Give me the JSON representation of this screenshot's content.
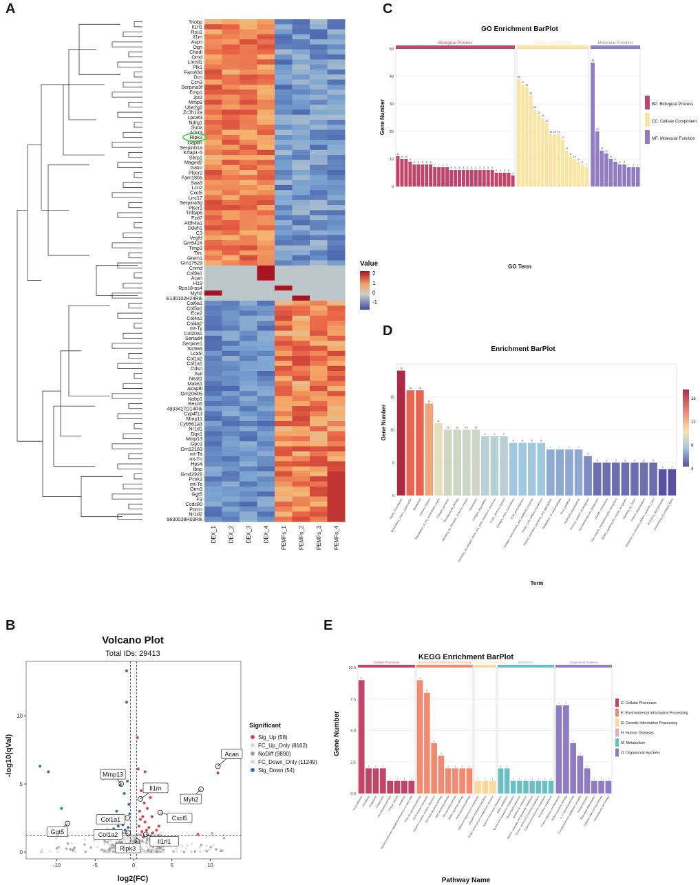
{
  "panel_labels": {
    "a": "A",
    "b": "B",
    "c": "C",
    "d": "D",
    "e": "E"
  },
  "colors": {
    "up": "#d6404e",
    "down": "#2f6fb7",
    "nodiff": "#9a9a9a",
    "fc": "#d9d9d9",
    "bp": "#c1456b",
    "cc": "#fbe3a0",
    "mf": "#8f7cc3"
  },
  "chart_data": [
    {
      "id": "heatmap",
      "type": "heatmap",
      "title": "",
      "legend_title": "Value",
      "legend_ticks": [
        "2",
        "1",
        "0",
        "-1"
      ],
      "columns": [
        "DEX_1",
        "DEX_2",
        "DEX_3",
        "DEX_4",
        "PEMFs_1",
        "PEMFs_2",
        "PEMFs_3",
        "PEMFs_4"
      ],
      "rows": [
        "Triobp",
        "Il1rl1",
        "Rsu1",
        "Il1rn",
        "Aspn",
        "Ogn",
        "Chodl",
        "Omd",
        "Lmcd1",
        "Plk1",
        "Fam83d",
        "Dcn",
        "Ccn3",
        "Serpina3f",
        "Emp1",
        "Jpt2",
        "Mmp9",
        "Ube2g2",
        "Zc3h12a",
        "Lpcat3",
        "Ndrg1",
        "Suox",
        "Ackr3",
        "Ripk3",
        "Gapdh",
        "Serpinb1a",
        "Krtap1-5",
        "Serp1",
        "Maged2",
        "Gatm",
        "Plscr2",
        "Fam180a",
        "Saa3",
        "Lcn2",
        "Cxcl5",
        "Lrrc17",
        "Serpina3g",
        "Plscr1",
        "Tnfaip6",
        "Fzd7",
        "Aldh4a1",
        "Ddah1",
        "C3",
        "Vegfd",
        "Gm5424",
        "Timp3",
        "Tfrc",
        "Grem1",
        "Gm17529",
        "Cnmd",
        "Col9a1",
        "Acan",
        "H19",
        "Rps18-ps4",
        "Myh2",
        "E130102H24Rik",
        "Col6a1",
        "Col5a1",
        "Ece2",
        "Col4a1",
        "Col4a2",
        "mt-Ty",
        "Col20a1",
        "Sertad4",
        "Serpine1",
        "Slc9a5",
        "Lca5l",
        "Col1a2",
        "Col1a1",
        "Cdsn",
        "Avil",
        "Neat1",
        "Malat1",
        "Akap8l",
        "Gm20605",
        "Nabp1",
        "Rexo5",
        "4933427D14Rik",
        "Cyp4f13",
        "Mmp11",
        "Cyb561a3",
        "Nr1d1",
        "Dqx1",
        "Mmp13",
        "Gpc1",
        "Gm12183",
        "mt-Ta",
        "mt-Tn",
        "Hps4",
        "Ibsp",
        "Gm42929",
        "Pcsk2",
        "mt-Te",
        "Orm3",
        "Ggt5",
        "F3",
        "Ccdc80",
        "Porcn",
        "Nr1d2",
        "9630028H03Rik"
      ],
      "highlight_row": "Ripk3"
    },
    {
      "id": "volcano",
      "type": "scatter",
      "title": "Volcano Plot",
      "subtitle": "Total IDs: 29413",
      "xlabel": "log2(FC)",
      "ylabel": "-log10(qVal)",
      "xlim": [
        -14,
        14
      ],
      "ylim": [
        -0.5,
        14
      ],
      "xticks": [
        -10,
        -5,
        0,
        5,
        10
      ],
      "yticks": [
        0,
        5,
        10
      ],
      "threshold_y": 1.2,
      "threshold_x": [
        -0.4,
        0.4
      ],
      "legend_title": "Significant",
      "legend": [
        {
          "key": "up",
          "label": "Sig_Up (58)"
        },
        {
          "key": "fc",
          "label": "FC_Up_Only (8162)"
        },
        {
          "key": "nodiff",
          "label": "NoDiff (9890)"
        },
        {
          "key": "fc",
          "label": "FC_Down_Only (11249)"
        },
        {
          "key": "down",
          "label": "Sig_Down (54)"
        }
      ],
      "up_points": [
        [
          0.6,
          6.1
        ],
        [
          1.5,
          5.9
        ],
        [
          1.6,
          4.6
        ],
        [
          0.5,
          8.4
        ],
        [
          1.0,
          4.5
        ],
        [
          2.2,
          4.0
        ],
        [
          1.8,
          3.2
        ],
        [
          0.8,
          3.0
        ],
        [
          1.2,
          2.6
        ],
        [
          1.5,
          2.2
        ],
        [
          2.0,
          1.8
        ],
        [
          3.3,
          1.9
        ],
        [
          8.4,
          1.3
        ],
        [
          2.5,
          1.4
        ],
        [
          1.1,
          1.5
        ],
        [
          0.7,
          1.9
        ],
        [
          1.3,
          1.1
        ],
        [
          1.7,
          1.6
        ],
        [
          0.9,
          2.4
        ],
        [
          1.4,
          3.6
        ],
        [
          3.0,
          1.6
        ],
        [
          2.4,
          2.6
        ],
        [
          1.9,
          4.9
        ],
        [
          11.0,
          5.8
        ]
      ],
      "down_points": [
        [
          -0.9,
          13.3
        ],
        [
          -0.9,
          11.0
        ],
        [
          -12.2,
          6.3
        ],
        [
          -11.1,
          5.9
        ],
        [
          -0.8,
          5.2
        ],
        [
          -1.7,
          4.9
        ],
        [
          -1.2,
          4.3
        ],
        [
          -0.6,
          3.5
        ],
        [
          -2.2,
          3.0
        ],
        [
          -1.8,
          2.6
        ],
        [
          -2.5,
          2.5
        ],
        [
          -3.1,
          2.3
        ],
        [
          -1.4,
          2.0
        ],
        [
          -2.0,
          1.9
        ],
        [
          -2.6,
          1.7
        ],
        [
          -3.4,
          1.6
        ],
        [
          -1.1,
          1.6
        ],
        [
          -9.4,
          3.2
        ],
        [
          -1.5,
          1.4
        ],
        [
          -2.9,
          1.3
        ],
        [
          -0.7,
          1.8
        ],
        [
          -1.9,
          2.2
        ],
        [
          -2.3,
          1.5
        ],
        [
          -0.5,
          2.8
        ]
      ],
      "labels": [
        {
          "name": "Acan",
          "x": 11.0,
          "y": 6.3
        },
        {
          "name": "Mmp13",
          "x": -1.6,
          "y": 5.0
        },
        {
          "name": "Il1rn",
          "x": 0.9,
          "y": 3.9
        },
        {
          "name": "Myh2",
          "x": 8.8,
          "y": 4.6
        },
        {
          "name": "Col1a1",
          "x": -0.8,
          "y": 2.5
        },
        {
          "name": "Cxcl5",
          "x": 3.5,
          "y": 2.9
        },
        {
          "name": "Ggt5",
          "x": -8.6,
          "y": 2.1
        },
        {
          "name": "Col1a2",
          "x": -0.7,
          "y": 1.4
        },
        {
          "name": "Il1rl1",
          "x": 1.6,
          "y": 1.3
        },
        {
          "name": "Ripk3",
          "x": 0.5,
          "y": 0.8
        }
      ]
    },
    {
      "id": "go",
      "type": "bar",
      "title": "GO Enrichment BarPlot",
      "xlabel": "GO Term",
      "ylabel": "Gene Number",
      "ylim": [
        0,
        50
      ],
      "yticks": [
        0,
        10,
        20,
        30,
        40,
        50
      ],
      "groups": [
        {
          "name": "Biological Process",
          "key": "bp",
          "values": [
            11,
            10,
            10,
            9,
            8,
            8,
            8,
            8,
            8,
            7,
            7,
            7,
            7,
            6,
            6,
            6,
            6,
            6,
            6,
            6,
            6,
            6,
            6,
            6,
            5,
            5,
            5,
            5,
            4
          ]
        },
        {
          "name": "Cellular Component",
          "key": "cc",
          "values": [
            39,
            37,
            36,
            33,
            28,
            26,
            25,
            23,
            19,
            19,
            19,
            17,
            13,
            11,
            10,
            9,
            8,
            7
          ]
        },
        {
          "name": "Molecular Function",
          "key": "mf",
          "values": [
            45,
            20,
            13,
            12,
            10,
            9,
            8,
            8,
            7,
            7,
            7
          ]
        }
      ],
      "legend": [
        "BP: Biological Process",
        "CC: Cellular Component",
        "MF: Molecular Function"
      ]
    },
    {
      "id": "enrich",
      "type": "bar",
      "title": "Enrichment BarPlot",
      "xlabel": "Term",
      "ylabel": "Gene Number",
      "ylim": [
        0,
        20
      ],
      "yticks": [
        0,
        5,
        10,
        15
      ],
      "legend_ticks": [
        "16",
        "12",
        "8",
        "4"
      ],
      "categories": [
        "Signal_Transduction",
        "Extracellular_matrix_organization",
        "Metabolism",
        "Immune_System",
        "Degradation_of_the_extracellular_matrix",
        "Collagen_formation",
        "Developmental_Biology",
        "Signaling_by_Receptor_Tyrosine_Kinases",
        "Hemostasis",
        "Collagen_degradation",
        "Assembly_of_collagen_fibrils_and_other_multimeric_structures",
        "Innate_Immune_System",
        "Collagen_chain_trimerization",
        "ECM_proteoglycans",
        "Collagen_biosynthesis_and_modifying_enzymes",
        "Integrin_cell_surface_interactions",
        "Platelet_activation_signaling_and_aggregation",
        "Metabolism_of_carbohydrates",
        "Axon_guidance",
        "Neutrophil_degranulation",
        "Nervous_system_development",
        "Glycosaminoglycan_metabolism",
        "NCAM1_interactions",
        "Non-integrin_membrane-ECM_interactions",
        "NCAM_signaling_for_neurite_out-growth",
        "Signaling_by_PDGF",
        "Platelet_degranulation",
        "Response_to_elevated_platelet_cytosolic_Ca2+",
        "Anchoring_fibril_formation",
        "Crosslinking_of_collagen_fibrils"
      ],
      "values": [
        19,
        16,
        16,
        14,
        11,
        10,
        10,
        10,
        10,
        9,
        9,
        9,
        8,
        8,
        8,
        8,
        7,
        7,
        7,
        7,
        6,
        5,
        5,
        5,
        5,
        5,
        5,
        5,
        4,
        4
      ]
    },
    {
      "id": "kegg",
      "type": "bar",
      "title": "KEGG Enrichment BarPlot",
      "xlabel": "Pathway Name",
      "ylabel": "Gene Number",
      "ylim": [
        0,
        10
      ],
      "yticks": [
        0.0,
        2.5,
        5.0,
        7.5,
        10.0
      ],
      "groups": [
        {
          "name": "Cellular Processes",
          "key": "C",
          "color": "#c1456b",
          "values": [
            9,
            2,
            2,
            2,
            1,
            1,
            1,
            1
          ]
        },
        {
          "name": "Environmental Information Processing",
          "key": "E",
          "color": "#f08a70",
          "values": [
            9,
            8,
            4,
            3,
            2,
            2,
            2,
            2
          ]
        },
        {
          "name": "Genetic Information Processing",
          "key": "G",
          "color": "#fbd89b",
          "values": [
            1,
            1,
            1
          ]
        },
        {
          "name": "Metabolism",
          "key": "M",
          "color": "#6bbfc4",
          "values": [
            2,
            2,
            1,
            1,
            1,
            1,
            1,
            1,
            1
          ]
        },
        {
          "name": "Organismal Systems",
          "key": "O",
          "color": "#8f7cc3",
          "values": [
            7,
            7,
            4,
            3,
            2,
            1,
            1,
            1
          ]
        }
      ],
      "categories": [
        "Focal adhesion",
        "Ferroptosis",
        "Phagosome",
        "Endocytosis",
        "p53 signaling pathway",
        "Oocyte meiosis",
        "Apoptosis",
        "Signaling pathways regulating pluripotency of stem cells",
        "PI3K-Akt signaling pathway",
        "ECM-receptor interaction",
        "Cytokine-cytokine receptor interaction",
        "TGF-beta signaling pathway",
        "TNF signaling pathway",
        "Wnt signaling pathway",
        "MAPK signaling pathway",
        "Hippo signaling pathway",
        "Ribosome biogenesis in eukaryotes",
        "Ubiquitin mediated proteolysis",
        "Protein processing in endoplasmic reticulum",
        "Arginine and proline metabolism",
        "Sulfur metabolism",
        "Taurine and hypotaurine metabolism",
        "Glycerolipid metabolism",
        "Glutathione metabolism",
        "Alanine, aspartate and glutamate metabolism",
        "Glycine, serine and threonine metabolism",
        "Cysteine and methionine metabolism",
        "Pyrimidine metabolism",
        "Protein digestion and absorption",
        "Relaxin signaling pathway",
        "IL-17 signaling pathway",
        "Complement and coagulation cascades",
        "Platelet activation",
        "Osteoclast differentiation",
        "Cytosolic DNA-sensing pathway",
        "Hematopoietic cell lineage"
      ],
      "legend": [
        "C: Cellular Processes",
        "E: Environmental Information Processing",
        "G: Genetic Information Processing",
        "H: Human Diseases",
        "M: Metabolism",
        "O: Organismal Systems"
      ]
    }
  ]
}
